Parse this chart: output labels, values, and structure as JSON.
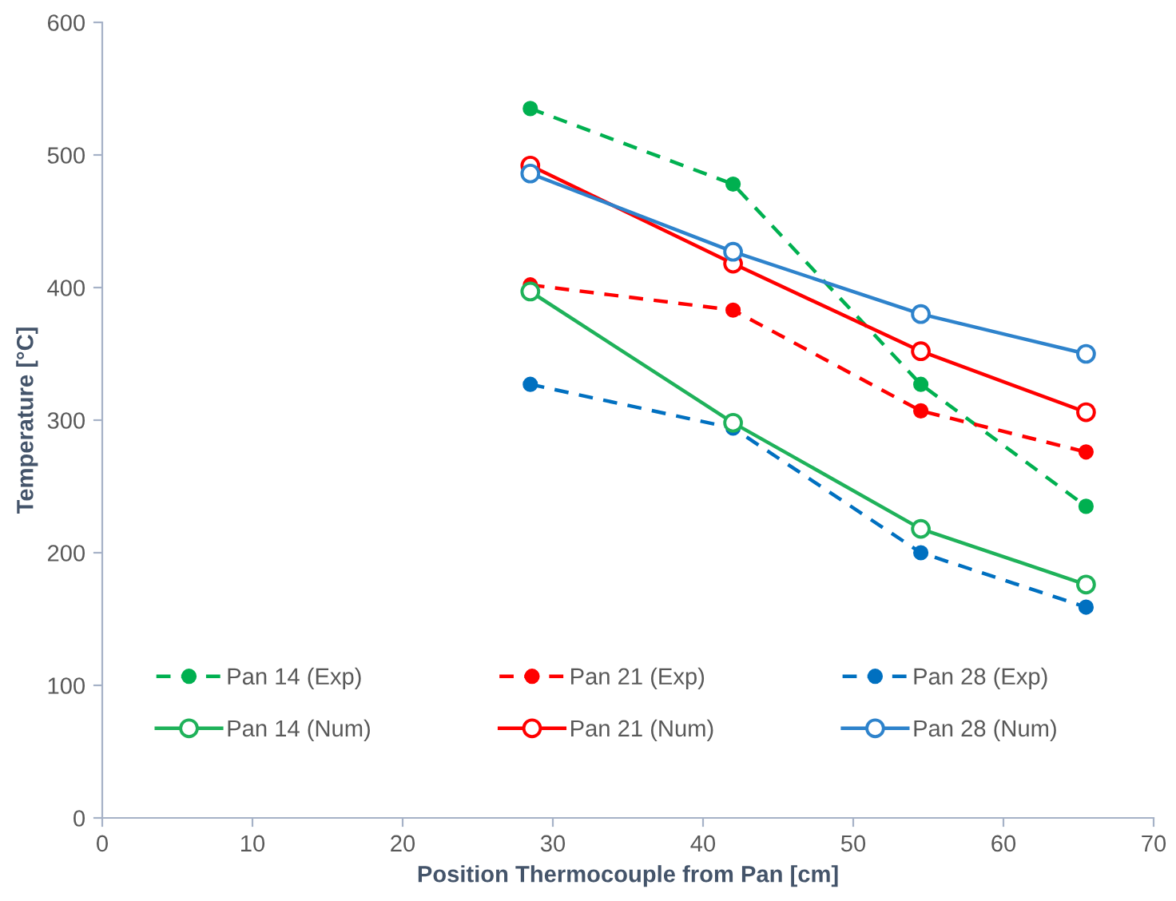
{
  "chart_data": {
    "type": "line",
    "xlabel": "Position Thermocouple from Pan [cm]",
    "ylabel": "Temperature [°C]",
    "x": [
      28.5,
      42,
      54.5,
      65.5
    ],
    "series": [
      {
        "name": "Pan 14 (Exp)",
        "color": "#00b050",
        "line_style": "dashed",
        "marker": "circle",
        "values": [
          535,
          478,
          327,
          235
        ]
      },
      {
        "name": "Pan 14 (Num)",
        "color": "#1fb25a",
        "line_style": "solid",
        "marker": "circle",
        "values": [
          397,
          298,
          218,
          176
        ]
      },
      {
        "name": "Pan 21 (Exp)",
        "color": "#ff0000",
        "line_style": "dashed",
        "marker": "circle",
        "values": [
          402,
          383,
          307,
          276
        ]
      },
      {
        "name": "Pan 21 (Num)",
        "color": "#ff0000",
        "line_style": "solid",
        "marker": "circle",
        "values": [
          492,
          418,
          352,
          306
        ]
      },
      {
        "name": "Pan 28 (Exp)",
        "color": "#0070c0",
        "line_style": "dashed",
        "marker": "circle",
        "values": [
          327,
          294,
          200,
          159
        ]
      },
      {
        "name": "Pan 28 (Num)",
        "color": "#2e83cc",
        "line_style": "solid",
        "marker": "circle",
        "values": [
          486,
          427,
          380,
          350
        ]
      }
    ],
    "xlim": [
      0,
      70
    ],
    "xticks": [
      0,
      10,
      20,
      30,
      40,
      50,
      60,
      70
    ],
    "ylim": [
      0,
      600
    ],
    "yticks": [
      0,
      100,
      200,
      300,
      400,
      500,
      600
    ],
    "grid": false,
    "legend": "bottom"
  }
}
